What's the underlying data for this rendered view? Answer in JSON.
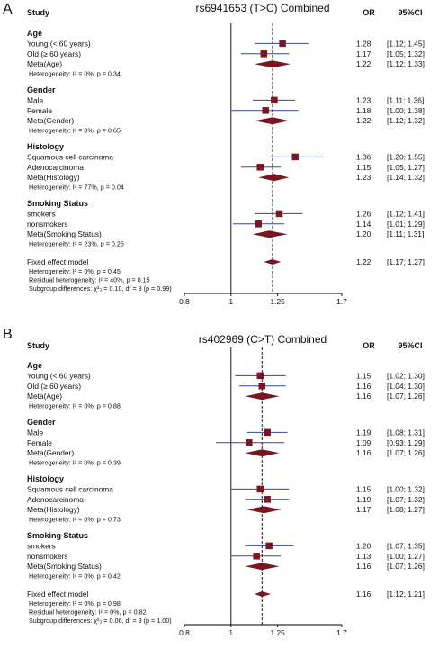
{
  "colors": {
    "marker": "#7a1620",
    "ci_line": "#3346a0",
    "ref_line": "#000000",
    "dashed_line": "#000000"
  },
  "chart_data": [
    {
      "type": "forest",
      "panel_letter": "A",
      "title": "rs6941653 (T>C) Combined",
      "headers": {
        "study": "Study",
        "or": "OR",
        "ci": "95%CI"
      },
      "scale": "log",
      "x_ticks": [
        0.8,
        1,
        1.25,
        1.7
      ],
      "x_tick_labels": [
        "0.8",
        "1",
        "1.25",
        "1.7"
      ],
      "xlim": [
        0.8,
        1.7
      ],
      "reference_value": 1,
      "pooled_value": 1.22,
      "groups": [
        {
          "name": "Age",
          "studies": [
            {
              "label": "Young (< 60 years)",
              "or": 1.28,
              "lower": 1.12,
              "upper": 1.45,
              "or_text": "1.28",
              "ci_text": "[1.12; 1.45]"
            },
            {
              "label": "Old (≥ 60 years)",
              "or": 1.17,
              "lower": 1.05,
              "upper": 1.32,
              "or_text": "1.17",
              "ci_text": "[1.05; 1.32]"
            }
          ],
          "meta": {
            "label": "Meta(Age)",
            "or": 1.22,
            "lower": 1.12,
            "upper": 1.33,
            "or_text": "1.22",
            "ci_text": "[1.12; 1.33]"
          },
          "heterogeneity": "Heterogeneity: I² = 0%, p = 0.34"
        },
        {
          "name": "Gender",
          "studies": [
            {
              "label": "Male",
              "or": 1.23,
              "lower": 1.11,
              "upper": 1.36,
              "or_text": "1.23",
              "ci_text": "[1.11; 1.36]"
            },
            {
              "label": "Female",
              "or": 1.18,
              "lower": 1.0,
              "upper": 1.38,
              "or_text": "1.18",
              "ci_text": "[1.00; 1.38]"
            }
          ],
          "meta": {
            "label": "Meta(Gender)",
            "or": 1.22,
            "lower": 1.12,
            "upper": 1.32,
            "or_text": "1.22",
            "ci_text": "[1.12; 1.32]"
          },
          "heterogeneity": "Heterogeneity: I² = 0%, p = 0.65"
        },
        {
          "name": "Histology",
          "studies": [
            {
              "label": "Squamous cell carcinoma",
              "or": 1.36,
              "lower": 1.2,
              "upper": 1.55,
              "or_text": "1.36",
              "ci_text": "[1.20; 1.55]"
            },
            {
              "label": "Adenocarcinoma",
              "or": 1.15,
              "lower": 1.05,
              "upper": 1.27,
              "or_text": "1.15",
              "ci_text": "[1.05; 1.27]"
            }
          ],
          "meta": {
            "label": "Meta(Histology)",
            "or": 1.23,
            "lower": 1.14,
            "upper": 1.32,
            "or_text": "1.23",
            "ci_text": "[1.14; 1.32]"
          },
          "heterogeneity": "Heterogeneity: I² = 77%, p = 0.04"
        },
        {
          "name": "Smoking Status",
          "studies": [
            {
              "label": "smokers",
              "or": 1.26,
              "lower": 1.12,
              "upper": 1.41,
              "or_text": "1.26",
              "ci_text": "[1.12; 1.41]"
            },
            {
              "label": "nonsmokers",
              "or": 1.14,
              "lower": 1.01,
              "upper": 1.29,
              "or_text": "1.14",
              "ci_text": "[1.01; 1.29]"
            }
          ],
          "meta": {
            "label": "Meta(Smoking Status)",
            "or": 1.2,
            "lower": 1.11,
            "upper": 1.31,
            "or_text": "1.20",
            "ci_text": "[1.11; 1.31]"
          },
          "heterogeneity": "Heterogeneity: I² = 23%, p = 0.25"
        }
      ],
      "overall": {
        "label": "Fixed effect model",
        "or": 1.22,
        "lower": 1.17,
        "upper": 1.27,
        "or_text": "1.22",
        "ci_text": "[1.17; 1.27]",
        "notes": [
          "Heterogeneity: I² = 0%, p = 0.45",
          "Residual heterogeneity: I² = 40%, p = 0.15",
          "Subgroup differences: χ²₃ = 0.10, df = 3 (p = 0.99)"
        ]
      }
    },
    {
      "type": "forest",
      "panel_letter": "B",
      "title": "rs402969 (C>T) Combined",
      "headers": {
        "study": "Study",
        "or": "OR",
        "ci": "95%CI"
      },
      "scale": "log",
      "x_ticks": [
        0.8,
        1,
        1.25,
        1.7
      ],
      "x_tick_labels": [
        "0.8",
        "1",
        "1.25",
        "1.7"
      ],
      "xlim": [
        0.8,
        1.7
      ],
      "reference_value": 1,
      "pooled_value": 1.16,
      "groups": [
        {
          "name": "Age",
          "studies": [
            {
              "label": "Young (< 60 years)",
              "or": 1.15,
              "lower": 1.02,
              "upper": 1.3,
              "or_text": "1.15",
              "ci_text": "[1.02; 1.30]"
            },
            {
              "label": "Old (≥ 60 years)",
              "or": 1.16,
              "lower": 1.04,
              "upper": 1.3,
              "or_text": "1.16",
              "ci_text": "[1.04; 1.30]"
            }
          ],
          "meta": {
            "label": "Meta(Age)",
            "or": 1.16,
            "lower": 1.07,
            "upper": 1.26,
            "or_text": "1.16",
            "ci_text": "[1.07; 1.26]"
          },
          "heterogeneity": "Heterogeneity: I² = 0%, p = 0.88"
        },
        {
          "name": "Gender",
          "studies": [
            {
              "label": "Male",
              "or": 1.19,
              "lower": 1.08,
              "upper": 1.31,
              "or_text": "1.19",
              "ci_text": "[1.08; 1.31]"
            },
            {
              "label": "Female",
              "or": 1.09,
              "lower": 0.93,
              "upper": 1.29,
              "or_text": "1.09",
              "ci_text": "[0.93; 1.29]"
            }
          ],
          "meta": {
            "label": "Meta(Gender)",
            "or": 1.16,
            "lower": 1.07,
            "upper": 1.26,
            "or_text": "1.16",
            "ci_text": "[1.07; 1.26]"
          },
          "heterogeneity": "Heterogeneity: I² = 0%, p = 0.39"
        },
        {
          "name": "Histology",
          "studies": [
            {
              "label": "Squamous cell carcinoma",
              "or": 1.15,
              "lower": 1.0,
              "upper": 1.32,
              "or_text": "1.15",
              "ci_text": "[1.00; 1.32]"
            },
            {
              "label": "Adenocarcinoma",
              "or": 1.19,
              "lower": 1.07,
              "upper": 1.32,
              "or_text": "1.19",
              "ci_text": "[1.07; 1.32]"
            }
          ],
          "meta": {
            "label": "Meta(Histology)",
            "or": 1.17,
            "lower": 1.08,
            "upper": 1.27,
            "or_text": "1.17",
            "ci_text": "[1.08; 1.27]"
          },
          "heterogeneity": "Heterogeneity: I² = 0%, p = 0.73"
        },
        {
          "name": "Smoking Status",
          "studies": [
            {
              "label": "smokers",
              "or": 1.2,
              "lower": 1.07,
              "upper": 1.35,
              "or_text": "1.20",
              "ci_text": "[1.07; 1.35]"
            },
            {
              "label": "nonsmokers",
              "or": 1.13,
              "lower": 1.0,
              "upper": 1.27,
              "or_text": "1.13",
              "ci_text": "[1.00; 1.27]"
            }
          ],
          "meta": {
            "label": "Meta(Smoking Status)",
            "or": 1.16,
            "lower": 1.07,
            "upper": 1.26,
            "or_text": "1.16",
            "ci_text": "[1.07; 1.26]"
          },
          "heterogeneity": "Heterogeneity: I² = 0%, p = 0.42"
        }
      ],
      "overall": {
        "label": "Fixed effect model",
        "or": 1.16,
        "lower": 1.12,
        "upper": 1.21,
        "or_text": "1.16",
        "ci_text": "[1.12; 1.21]",
        "notes": [
          "Heterogeneity: I² = 0%, p = 0.98",
          "Residual heterogeneity: I² = 0%, p = 0.82",
          "Subgroup differences: χ²₃ = 0.06, df = 3 (p = 1.00)"
        ]
      }
    }
  ]
}
